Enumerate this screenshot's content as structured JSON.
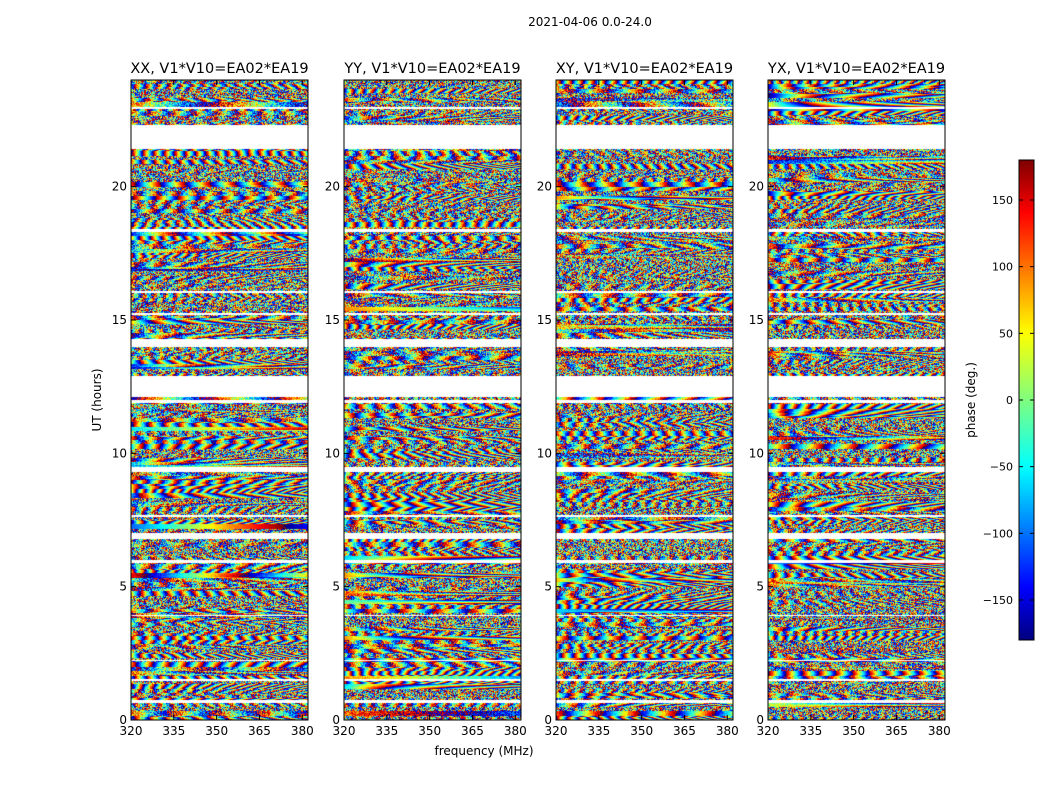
{
  "chart_data": {
    "type": "heatmap",
    "suptitle": "2021-04-06 0.0-24.0",
    "xlabel": "frequency (MHz)",
    "ylabel": "UT (hours)",
    "xlim": [
      320,
      382
    ],
    "ylim": [
      0,
      24
    ],
    "x_ticks": [
      320,
      335,
      350,
      365,
      380
    ],
    "y_ticks": [
      0,
      5,
      10,
      15,
      20
    ],
    "panels": [
      {
        "title": "XX, V1*V10=EA02*EA19",
        "x_tick_labels": [
          "320",
          "335",
          "350",
          "365",
          "380"
        ],
        "y_tick_labels": [
          "0",
          "5",
          "10",
          "15",
          "20"
        ]
      },
      {
        "title": "YY, V1*V10=EA02*EA19",
        "x_tick_labels": [
          "320",
          "335",
          "350",
          "365",
          "380"
        ],
        "y_tick_labels": [
          "0",
          "5",
          "10",
          "15",
          "20"
        ]
      },
      {
        "title": "XY, V1*V10=EA02*EA19",
        "x_tick_labels": [
          "320",
          "335",
          "350",
          "365",
          "380"
        ],
        "y_tick_labels": [
          "0",
          "5",
          "10",
          "15",
          "20"
        ]
      },
      {
        "title": "YX, V1*V10=EA02*EA19",
        "x_tick_labels": [
          "320",
          "335",
          "350",
          "365",
          "380"
        ],
        "y_tick_labels": [
          "0",
          "5",
          "10",
          "15",
          "20"
        ]
      }
    ],
    "colorbar": {
      "label": "phase (deg.)",
      "range": [
        -180,
        180
      ],
      "ticks": [
        150,
        100,
        50,
        0,
        -50,
        -100,
        -150
      ],
      "tick_labels": [
        "150",
        "100",
        "50",
        "0",
        "−50",
        "−100",
        "−150"
      ],
      "colormap": "jet"
    },
    "flagged_gaps_ut": [
      [
        0.65,
        0.75
      ],
      [
        1.45,
        1.55
      ],
      [
        2.2,
        2.25
      ],
      [
        3.9,
        3.95
      ],
      [
        5.9,
        6.0
      ],
      [
        6.8,
        7.0
      ],
      [
        7.6,
        7.7
      ],
      [
        9.3,
        9.5
      ],
      [
        11.9,
        12.0
      ],
      [
        12.1,
        12.9
      ],
      [
        14.0,
        14.3
      ],
      [
        15.2,
        15.25
      ],
      [
        16.0,
        16.1
      ],
      [
        18.3,
        18.4
      ],
      [
        21.4,
        22.3
      ],
      [
        22.9,
        23.0
      ]
    ],
    "note": "Phase vs time (UT) and frequency per polarization product; white bands are flagged/missing data."
  }
}
